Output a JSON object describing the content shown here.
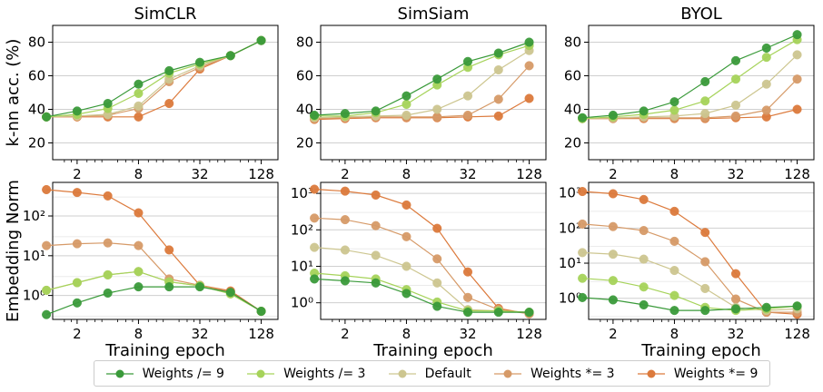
{
  "chart_data": {
    "type": "line",
    "x": [
      1,
      2,
      4,
      8,
      16,
      32,
      64,
      128
    ],
    "xticks": [
      2,
      8,
      32,
      128
    ],
    "xtick_labels": [
      "2",
      "8",
      "32",
      "128"
    ],
    "xscale": "log2",
    "xlabel": "Training epoch",
    "series_legend": [
      {
        "name": "Weights /= 9",
        "color": "#3a9a3a"
      },
      {
        "name": "Weights /= 3",
        "color": "#a6d35a"
      },
      {
        "name": "Default",
        "color": "#cdc690"
      },
      {
        "name": "Weights *= 3",
        "color": "#d69a68"
      },
      {
        "name": "Weights *= 9",
        "color": "#dc7a3c"
      }
    ],
    "legend_placement": "bottom-center",
    "panels": [
      {
        "row": "knn",
        "title": "SimCLR",
        "ylabel": "k-nn acc. (%)",
        "yscale": "linear",
        "ylim": [
          10,
          90
        ],
        "yticks": [
          20,
          40,
          60,
          80
        ],
        "ytick_labels": [
          "20",
          "40",
          "60",
          "80"
        ],
        "series": [
          [
            35.5,
            39,
            43.5,
            55,
            63,
            68,
            72,
            81
          ],
          [
            35.5,
            37,
            40.5,
            49.5,
            61.5,
            67,
            72,
            81
          ],
          [
            35.5,
            36,
            37,
            42,
            58,
            66,
            72,
            81
          ],
          [
            35.5,
            36,
            36.5,
            40.5,
            56.5,
            65,
            72,
            81
          ],
          [
            35.5,
            35.5,
            35.5,
            35.5,
            43.5,
            64,
            72,
            81
          ]
        ]
      },
      {
        "row": "knn",
        "title": "SimSiam",
        "ylabel": "",
        "yscale": "linear",
        "ylim": [
          10,
          90
        ],
        "yticks": [
          20,
          40,
          60,
          80
        ],
        "ytick_labels": [
          "20",
          "40",
          "60",
          "80"
        ],
        "series": [
          [
            36.5,
            37.5,
            39,
            48,
            58,
            68.5,
            73.5,
            80
          ],
          [
            36,
            36,
            38,
            43,
            54.5,
            65,
            72.5,
            78
          ],
          [
            35,
            35.5,
            36,
            36.5,
            40,
            48,
            63.5,
            75
          ],
          [
            34.5,
            35,
            35.5,
            35.5,
            35.5,
            36.5,
            46,
            66
          ],
          [
            34,
            34.5,
            35,
            35,
            35,
            35.5,
            36,
            46.5
          ]
        ]
      },
      {
        "row": "knn",
        "title": "BYOL",
        "ylabel": "",
        "yscale": "linear",
        "ylim": [
          10,
          90
        ],
        "yticks": [
          20,
          40,
          60,
          80
        ],
        "ytick_labels": [
          "20",
          "40",
          "60",
          "80"
        ],
        "series": [
          [
            35,
            36.5,
            39,
            44.5,
            56.5,
            69,
            76.5,
            84.5
          ],
          [
            34.5,
            35.5,
            37,
            39.5,
            45,
            58,
            71,
            81.5
          ],
          [
            34.5,
            35,
            35.5,
            36,
            37.5,
            42.5,
            55,
            72.5
          ],
          [
            34.5,
            34.5,
            35,
            35,
            35,
            36,
            39.5,
            58
          ],
          [
            34.5,
            34.5,
            34.5,
            34.5,
            34.5,
            35,
            35.5,
            40
          ]
        ]
      },
      {
        "row": "norm",
        "title": "",
        "ylabel": "Embedding Norm",
        "yscale": "log",
        "ylim": [
          0.25,
          700
        ],
        "yticks": [
          1,
          10,
          100
        ],
        "ytick_labels": [
          "10⁰",
          "10¹",
          "10²"
        ],
        "series": [
          [
            0.33,
            0.65,
            1.15,
            1.65,
            1.65,
            1.65,
            1.2,
            0.4
          ],
          [
            1.35,
            2.1,
            3.3,
            4,
            2.2,
            1.75,
            1.1,
            0.4
          ],
          [
            1.35,
            2.1,
            3.3,
            4,
            2.2,
            1.75,
            1.1,
            0.4
          ],
          [
            18,
            20,
            21,
            18,
            2.6,
            1.8,
            1.2,
            0.4
          ],
          [
            460,
            390,
            320,
            120,
            14,
            1.8,
            1.3,
            0.4
          ]
        ]
      },
      {
        "row": "norm",
        "title": "",
        "ylabel": "",
        "yscale": "log",
        "ylim": [
          0.35,
          2000
        ],
        "yticks": [
          1,
          10,
          100,
          1000
        ],
        "ytick_labels": [
          "10⁰",
          "10¹",
          "10²",
          "10³"
        ],
        "series": [
          [
            4.5,
            4,
            3.5,
            1.8,
            0.8,
            0.55,
            0.55,
            0.55
          ],
          [
            6.5,
            5.5,
            4.5,
            2.3,
            1.05,
            0.6,
            0.6,
            0.55
          ],
          [
            33,
            28,
            20,
            10,
            3.5,
            0.65,
            0.6,
            0.55
          ],
          [
            210,
            190,
            130,
            65,
            16,
            1.4,
            0.65,
            0.5
          ],
          [
            1300,
            1150,
            900,
            480,
            110,
            7,
            0.7,
            0.5
          ]
        ]
      },
      {
        "row": "norm",
        "title": "",
        "ylabel": "",
        "yscale": "log",
        "ylim": [
          0.25,
          2000
        ],
        "yticks": [
          1,
          10,
          100,
          1000
        ],
        "ytick_labels": [
          "10⁰",
          "10¹",
          "10²",
          "10³"
        ],
        "series": [
          [
            1.05,
            0.9,
            0.65,
            0.45,
            0.45,
            0.5,
            0.55,
            0.6
          ],
          [
            3.7,
            3.2,
            2.1,
            1.2,
            0.55,
            0.45,
            0.5,
            0.6
          ],
          [
            20,
            18,
            13,
            6.2,
            1.9,
            0.55,
            0.45,
            0.5
          ],
          [
            130,
            110,
            85,
            42,
            11,
            0.95,
            0.4,
            0.4
          ],
          [
            1100,
            950,
            650,
            300,
            75,
            5,
            0.4,
            0.35
          ]
        ]
      }
    ]
  }
}
